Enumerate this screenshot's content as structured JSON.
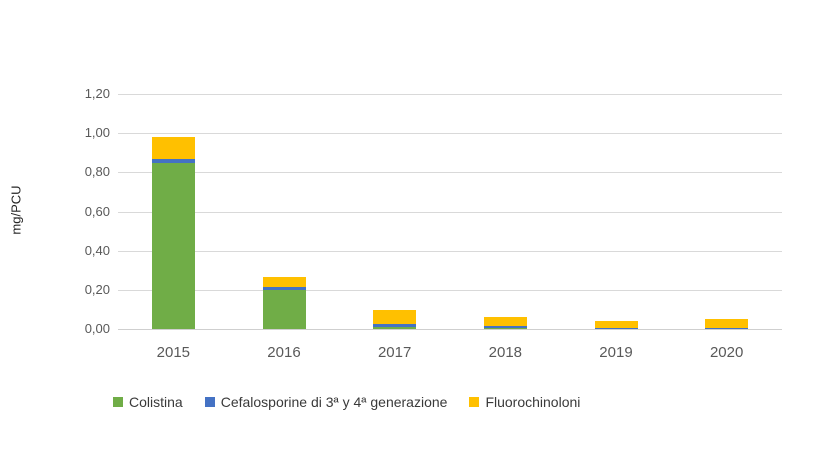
{
  "chart_data": {
    "type": "bar",
    "stacked": true,
    "title": "",
    "xlabel": "",
    "ylabel": "mg/PCU",
    "ylim": [
      0,
      1.2
    ],
    "grid": true,
    "legend_position": "bottom",
    "categories": [
      "2015",
      "2016",
      "2017",
      "2018",
      "2019",
      "2020"
    ],
    "yticks": [
      {
        "value": 0.0,
        "label": "0,00"
      },
      {
        "value": 0.2,
        "label": "0,20"
      },
      {
        "value": 0.4,
        "label": "0,40"
      },
      {
        "value": 0.6,
        "label": "0,60"
      },
      {
        "value": 0.8,
        "label": "0,80"
      },
      {
        "value": 1.0,
        "label": "1,00"
      },
      {
        "value": 1.2,
        "label": "1,20"
      }
    ],
    "series": [
      {
        "name": "Colistina",
        "color": "#70AD47",
        "values": [
          0.85,
          0.2,
          0.01,
          0.005,
          0.003,
          0.003
        ]
      },
      {
        "name": "Cefalosporine di 3ª y 4ª generazione",
        "color": "#4472C4",
        "values": [
          0.02,
          0.015,
          0.015,
          0.01,
          0.002,
          0.002
        ]
      },
      {
        "name": "Fluorochinoloni",
        "color": "#FFC000",
        "values": [
          0.11,
          0.05,
          0.07,
          0.045,
          0.035,
          0.045
        ]
      }
    ],
    "style": {
      "gridline_color": "#D9D9D9",
      "axis_text_color": "#595959",
      "legend_text_color": "#3A3A3A",
      "background": "#FFFFFF"
    }
  }
}
